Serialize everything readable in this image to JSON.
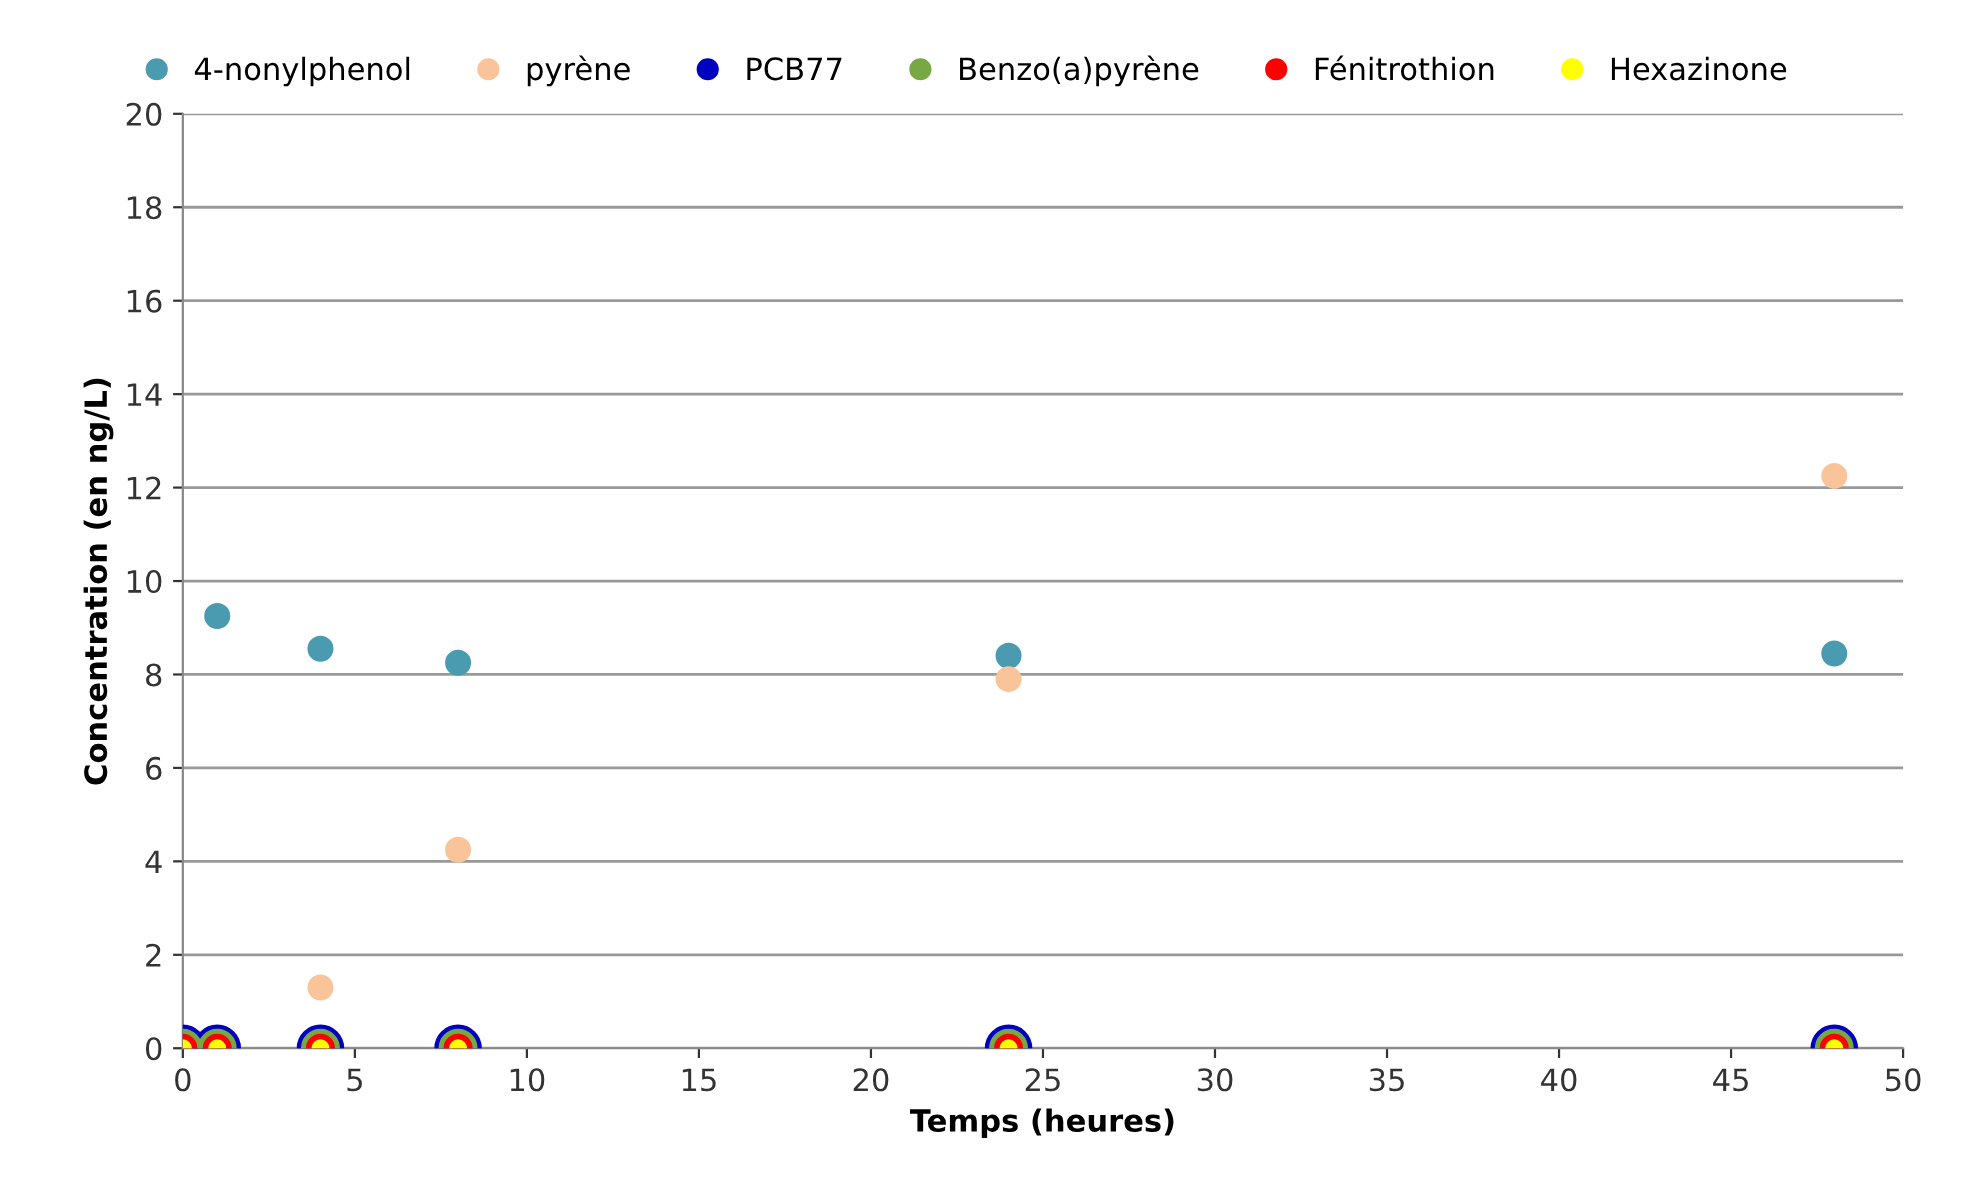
{
  "chart_data": {
    "type": "scatter",
    "xlabel": "Temps (heures)",
    "ylabel": "Concentration (en ng/L)",
    "xlim": [
      0,
      50
    ],
    "xticks": [
      0,
      5,
      10,
      15,
      20,
      25,
      30,
      35,
      40,
      45,
      50
    ],
    "ylim": [
      0,
      20
    ],
    "yticks": [
      0,
      2,
      4,
      6,
      8,
      10,
      12,
      14,
      16,
      18,
      20
    ],
    "grid": "y",
    "legend": "top",
    "marker": "circle",
    "series": [
      {
        "name": "4-nonylphenol",
        "color": "#4a9bb0",
        "x": [
          1,
          4,
          8,
          24,
          48
        ],
        "values": [
          9.25,
          8.55,
          8.25,
          8.4,
          8.45
        ]
      },
      {
        "name": "pyrène",
        "color": "#f9c49a",
        "x": [
          4,
          8,
          24,
          48
        ],
        "values": [
          1.3,
          4.25,
          7.9,
          12.25
        ]
      },
      {
        "name": "PCB77",
        "color": "#0000c0",
        "x": [
          0,
          1,
          4,
          8,
          24,
          48
        ],
        "values": [
          0,
          0,
          0,
          0,
          0,
          0
        ]
      },
      {
        "name": "Benzo(a)pyrène",
        "color": "#77a844",
        "x": [
          0,
          1,
          4,
          8,
          24,
          48
        ],
        "values": [
          0,
          0,
          0,
          0,
          0,
          0
        ]
      },
      {
        "name": "Fénitrothion",
        "color": "#ff0000",
        "x": [
          0,
          1,
          4,
          8,
          24,
          48
        ],
        "values": [
          0,
          0,
          0,
          0,
          0,
          0
        ]
      },
      {
        "name": "Hexazinone",
        "color": "#ffff00",
        "x": [
          0,
          1,
          4,
          8,
          24,
          48
        ],
        "values": [
          0,
          0,
          0,
          0,
          0,
          0
        ]
      }
    ]
  }
}
